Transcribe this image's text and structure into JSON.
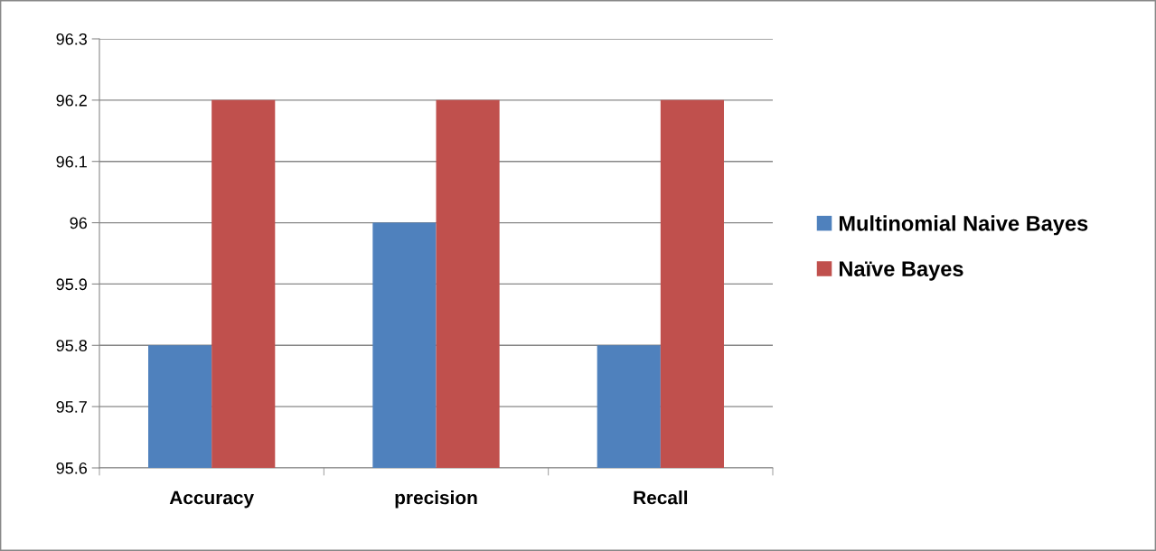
{
  "chart_data": {
    "type": "bar",
    "categories": [
      "Accuracy",
      "precision",
      "Recall"
    ],
    "series": [
      {
        "name": "Multinomial Naive Bayes",
        "color": "#4f81bd",
        "values": [
          95.8,
          96.0,
          95.8
        ]
      },
      {
        "name": "Naïve Bayes",
        "color": "#c0504d",
        "values": [
          96.2,
          96.2,
          96.2
        ]
      }
    ],
    "ylim": [
      95.6,
      96.3
    ],
    "yticks": [
      {
        "value": 95.6,
        "label": "95.6"
      },
      {
        "value": 95.7,
        "label": "95.7"
      },
      {
        "value": 95.8,
        "label": "95.8"
      },
      {
        "value": 95.9,
        "label": "95.9"
      },
      {
        "value": 96.0,
        "label": "96"
      },
      {
        "value": 96.1,
        "label": "96.1"
      },
      {
        "value": 96.2,
        "label": "96.2"
      },
      {
        "value": 96.3,
        "label": "96.3"
      }
    ],
    "grid": "y",
    "legend": "right"
  }
}
